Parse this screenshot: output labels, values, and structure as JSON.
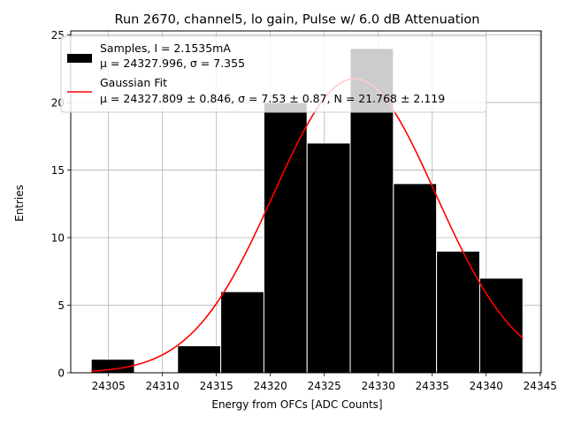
{
  "chart_data": {
    "type": "bar",
    "title": "Run 2670, channel5, lo gain, Pulse w/ 6.0 dB Attenuation",
    "xlabel": "Energy from OFCs [ADC Counts]",
    "ylabel": "Entries",
    "xlim": [
      24301.5,
      24345.1
    ],
    "ylim": [
      0,
      25.3
    ],
    "xticks": [
      24305,
      24310,
      24315,
      24320,
      24325,
      24330,
      24335,
      24340,
      24345
    ],
    "yticks": [
      0,
      5,
      10,
      15,
      20,
      25
    ],
    "grid": true,
    "legend_position": "top-left",
    "bins": [
      {
        "x0": 24303.4,
        "x1": 24307.4,
        "count": 1
      },
      {
        "x0": 24307.4,
        "x1": 24311.4,
        "count": 0
      },
      {
        "x0": 24311.4,
        "x1": 24315.4,
        "count": 2
      },
      {
        "x0": 24315.4,
        "x1": 24319.4,
        "count": 6
      },
      {
        "x0": 24319.4,
        "x1": 24323.4,
        "count": 20
      },
      {
        "x0": 24323.4,
        "x1": 24327.4,
        "count": 17
      },
      {
        "x0": 24327.4,
        "x1": 24331.4,
        "count": 24
      },
      {
        "x0": 24331.4,
        "x1": 24335.4,
        "count": 14
      },
      {
        "x0": 24335.4,
        "x1": 24339.4,
        "count": 9
      },
      {
        "x0": 24339.4,
        "x1": 24343.4,
        "count": 7
      }
    ],
    "fit": {
      "mu": 24327.809,
      "sigma": 7.53,
      "N": 21.768,
      "x_range": [
        24303.4,
        24343.4
      ]
    },
    "series": [
      {
        "name": "Samples, I = 2.1535mA",
        "stats": "μ = 24327.996, σ = 7.355",
        "color": "#000000",
        "edge_color": "#ffffff"
      },
      {
        "name": "Gaussian Fit",
        "stats": "μ = 24327.809 ± 0.846, σ = 7.53 ± 0.87, N = 21.768 ± 2.119",
        "color": "#ff0000"
      }
    ]
  }
}
